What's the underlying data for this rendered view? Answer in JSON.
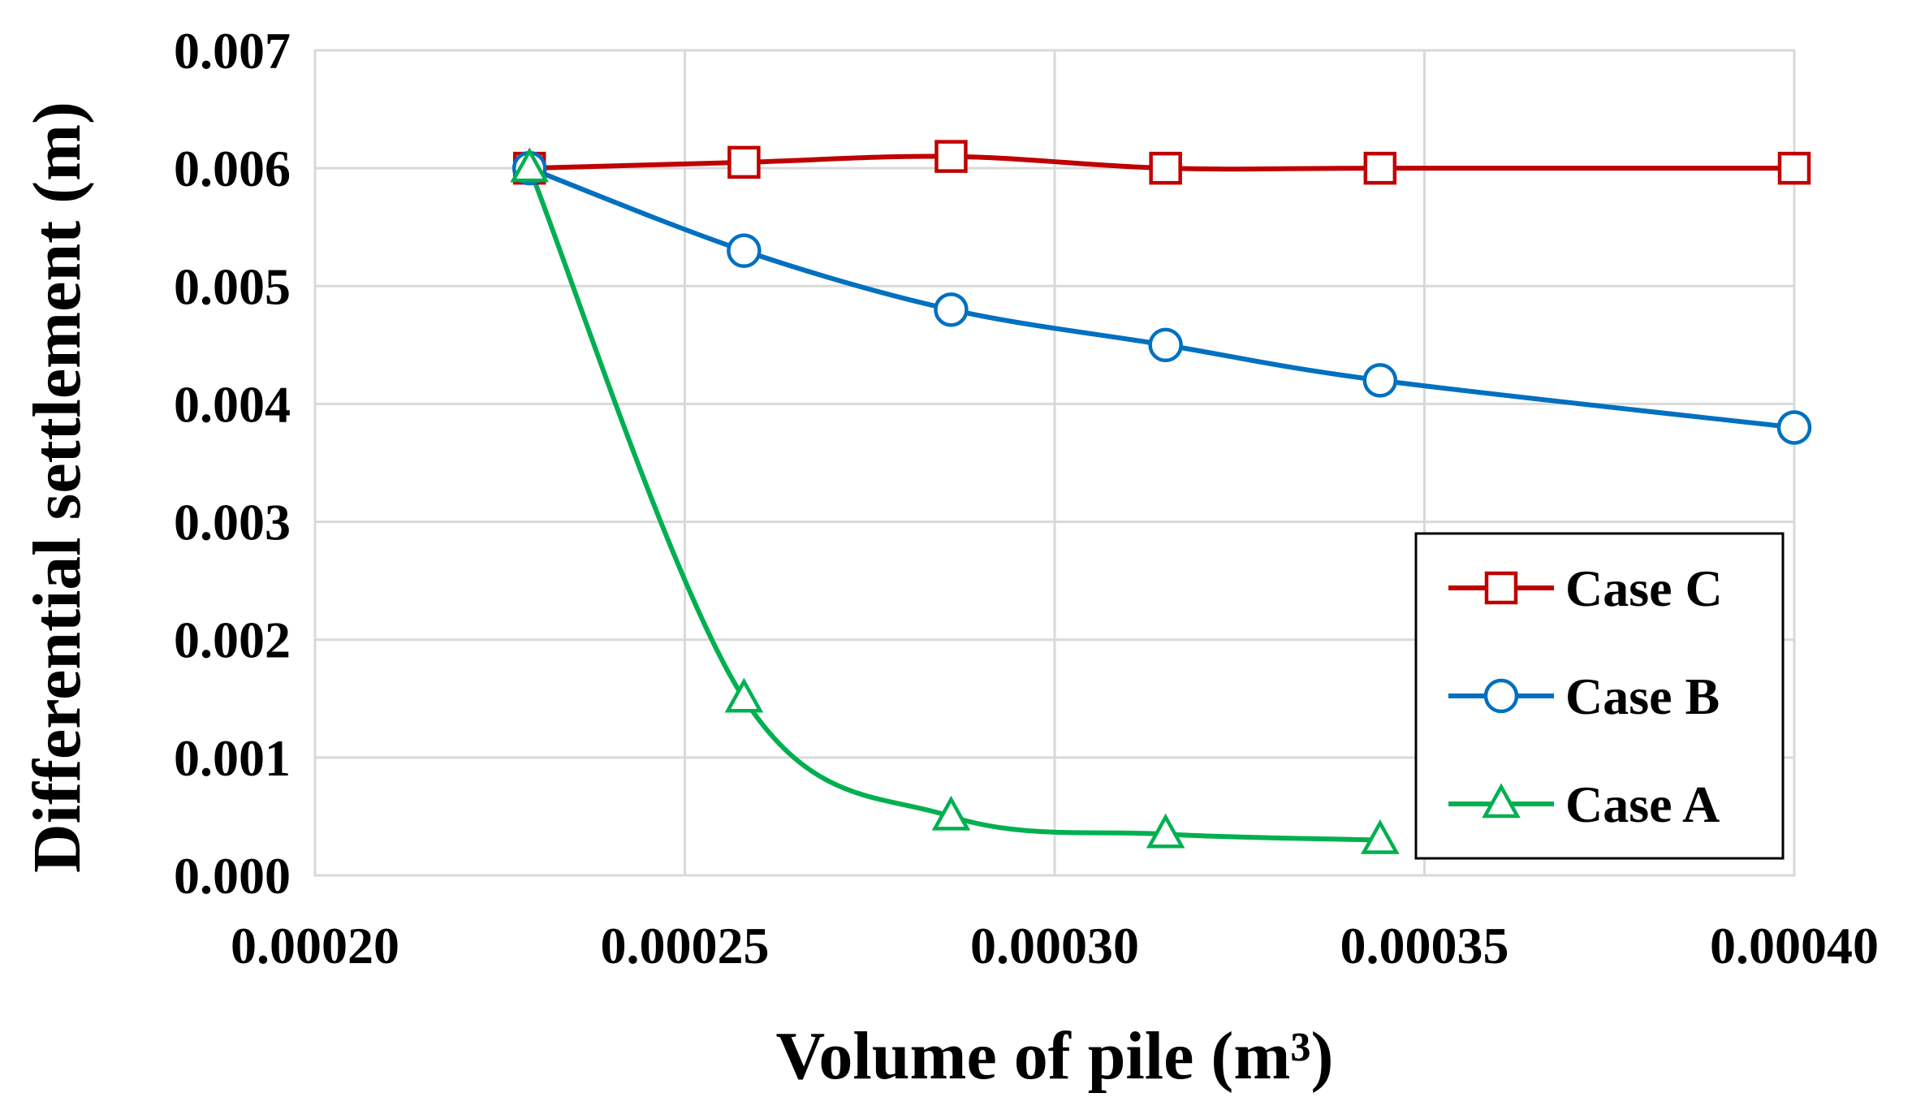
{
  "chart_data": {
    "type": "line",
    "title": "",
    "xlabel": "Volume of pile (m³)",
    "ylabel": "Differential settlement (m)",
    "xlim": [
      0.0002,
      0.0004
    ],
    "ylim": [
      0.0,
      0.007
    ],
    "x_ticks": [
      {
        "value": 0.0002,
        "label": "0.00020"
      },
      {
        "value": 0.00025,
        "label": "0.00025"
      },
      {
        "value": 0.0003,
        "label": "0.00030"
      },
      {
        "value": 0.00035,
        "label": "0.00035"
      },
      {
        "value": 0.0004,
        "label": "0.00040"
      }
    ],
    "y_ticks": [
      {
        "value": 0.0,
        "label": "0.000"
      },
      {
        "value": 0.001,
        "label": "0.001"
      },
      {
        "value": 0.002,
        "label": "0.002"
      },
      {
        "value": 0.003,
        "label": "0.003"
      },
      {
        "value": 0.004,
        "label": "0.004"
      },
      {
        "value": 0.005,
        "label": "0.005"
      },
      {
        "value": 0.006,
        "label": "0.006"
      },
      {
        "value": 0.007,
        "label": "0.007"
      }
    ],
    "grid": true,
    "legend_position": "bottom-right",
    "series": [
      {
        "name": "Case C",
        "color": "#C00000",
        "marker": "square",
        "x": [
          0.000229,
          0.000258,
          0.000286,
          0.000315,
          0.000344,
          0.0004
        ],
        "y": [
          0.006,
          0.00605,
          0.0061,
          0.006,
          0.006,
          0.006
        ]
      },
      {
        "name": "Case B",
        "color": "#0070C0",
        "marker": "circle",
        "x": [
          0.000229,
          0.000258,
          0.000286,
          0.000315,
          0.000344,
          0.0004
        ],
        "y": [
          0.006,
          0.0053,
          0.0048,
          0.0045,
          0.0042,
          0.0038
        ]
      },
      {
        "name": "Case A",
        "color": "#00B050",
        "marker": "triangle",
        "x": [
          0.000229,
          0.000258,
          0.000286,
          0.000315,
          0.000344
        ],
        "y": [
          0.006,
          0.0015,
          0.0005,
          0.00035,
          0.0003
        ]
      }
    ]
  }
}
